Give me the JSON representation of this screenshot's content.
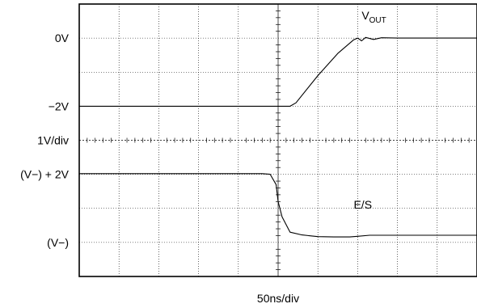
{
  "chart_data": {
    "type": "line",
    "title": "",
    "xlabel": "50ns/div",
    "ylabel_scale": "1V/div",
    "x_divisions": 10,
    "y_divisions": 8,
    "y_labels": [
      {
        "text": "0V",
        "div": 1
      },
      {
        "text": "−2V",
        "div": 3
      },
      {
        "text": "1V/div",
        "div": 4
      },
      {
        "text": "(V−) + 2V",
        "div": 5
      },
      {
        "text": "(V−)",
        "div": 7
      }
    ],
    "series": [
      {
        "name": "VOUT",
        "label_main": "V",
        "label_sub": "OUT",
        "x_div": [
          0,
          4.9,
          5.3,
          5.45,
          6.0,
          6.5,
          6.9,
          7.0,
          7.1,
          7.2,
          7.4,
          7.6,
          8.0,
          10
        ],
        "y_div": [
          3.0,
          3.0,
          3.0,
          2.9,
          2.1,
          1.45,
          1.05,
          1.0,
          1.08,
          0.98,
          1.04,
          0.99,
          1.0,
          1.0
        ]
      },
      {
        "name": "E/S",
        "label_main": "E/S",
        "label_sub": "",
        "x_div": [
          0,
          4.6,
          4.8,
          4.95,
          5.0,
          5.1,
          5.3,
          5.6,
          6.0,
          6.4,
          6.8,
          7.0,
          7.3,
          8.0,
          10
        ],
        "y_div": [
          4.98,
          4.98,
          5.0,
          5.3,
          5.8,
          6.25,
          6.7,
          6.78,
          6.83,
          6.84,
          6.84,
          6.82,
          6.79,
          6.79,
          6.79
        ]
      }
    ],
    "grid": true,
    "legend": "inline-labels"
  }
}
